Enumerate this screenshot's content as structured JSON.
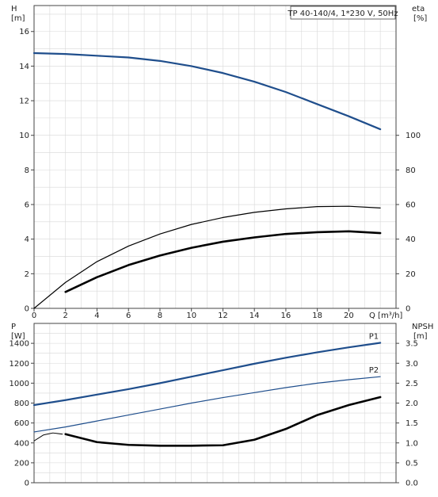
{
  "chart_data": [
    {
      "type": "line",
      "legend_box": "TP 40-140/4, 1*230 V, 50Hz",
      "xlabel": "Q [m³/h]",
      "ylabel_left": "H",
      "ylabel_left_unit": "[m]",
      "ylabel_right": "eta",
      "ylabel_right_unit": "[%]",
      "xlim": [
        0,
        23
      ],
      "ylim_left": [
        0,
        17.5
      ],
      "ylim_right": [
        0,
        175
      ],
      "x_ticks": [
        "0",
        "2",
        "4",
        "6",
        "8",
        "10",
        "12",
        "14",
        "16",
        "18",
        "20"
      ],
      "y_left_ticks": [
        "0",
        "2",
        "4",
        "6",
        "8",
        "10",
        "12",
        "14",
        "16"
      ],
      "y_right_ticks": [
        "0",
        "20",
        "40",
        "60",
        "80",
        "100"
      ],
      "grid": true,
      "series": [
        {
          "axis": "left",
          "color": "#1f4e8c",
          "width": 2.2,
          "x": [
            0,
            2,
            4,
            6,
            8,
            10,
            12,
            14,
            16,
            18,
            20,
            22
          ],
          "y": [
            14.75,
            14.7,
            14.6,
            14.5,
            14.3,
            14.0,
            13.6,
            13.1,
            12.5,
            11.8,
            11.1,
            10.35
          ]
        },
        {
          "axis": "right",
          "color": "#000000",
          "width": 1.2,
          "x": [
            0,
            2,
            4,
            6,
            8,
            10,
            12,
            14,
            16,
            18,
            20,
            22
          ],
          "y": [
            0,
            15,
            27,
            36,
            43,
            48.5,
            52.5,
            55.5,
            57.5,
            58.8,
            59,
            58
          ]
        },
        {
          "axis": "right",
          "color": "#000000",
          "width": 2.6,
          "x": [
            2,
            4,
            6,
            8,
            10,
            12,
            14,
            16,
            18,
            20,
            22
          ],
          "y": [
            9.5,
            18,
            25,
            30.5,
            35,
            38.5,
            41,
            43,
            44,
            44.5,
            43.5
          ]
        }
      ]
    },
    {
      "type": "line",
      "ylabel_left": "P",
      "ylabel_left_unit": "[W]",
      "ylabel_right": "NPSH",
      "ylabel_right_unit": "[m]",
      "xlim": [
        0,
        23
      ],
      "ylim_left": [
        0,
        1600
      ],
      "ylim_right": [
        0,
        4.0
      ],
      "y_left_ticks": [
        "0",
        "200",
        "400",
        "600",
        "800",
        "1000",
        "1200",
        "1400"
      ],
      "y_right_ticks": [
        "0.0",
        "0.5",
        "1.0",
        "1.5",
        "2.0",
        "2.5",
        "3.0",
        "3.5"
      ],
      "grid": true,
      "series": [
        {
          "name": "P1",
          "axis": "left",
          "color": "#1f4e8c",
          "width": 2.2,
          "x": [
            0,
            2,
            4,
            6,
            8,
            10,
            12,
            14,
            16,
            18,
            20,
            22
          ],
          "y": [
            780,
            830,
            885,
            940,
            1000,
            1065,
            1130,
            1195,
            1255,
            1310,
            1360,
            1405
          ]
        },
        {
          "name": "P2",
          "axis": "left",
          "color": "#1f4e8c",
          "width": 1.2,
          "x": [
            0,
            2,
            4,
            6,
            8,
            10,
            12,
            14,
            16,
            18,
            20,
            22
          ],
          "y": [
            510,
            560,
            620,
            680,
            740,
            800,
            855,
            905,
            955,
            1000,
            1035,
            1065
          ]
        },
        {
          "axis": "right",
          "color": "#000000",
          "width": 1.0,
          "x": [
            0,
            0.6,
            1.2,
            1.8
          ],
          "y": [
            1.05,
            1.2,
            1.25,
            1.22
          ]
        },
        {
          "axis": "right",
          "color": "#000000",
          "width": 2.6,
          "x": [
            2,
            4,
            6,
            8,
            10,
            12,
            14,
            16,
            18,
            20,
            22
          ],
          "y": [
            1.22,
            1.02,
            0.95,
            0.93,
            0.93,
            0.94,
            1.08,
            1.35,
            1.7,
            1.95,
            2.15
          ]
        }
      ]
    }
  ]
}
